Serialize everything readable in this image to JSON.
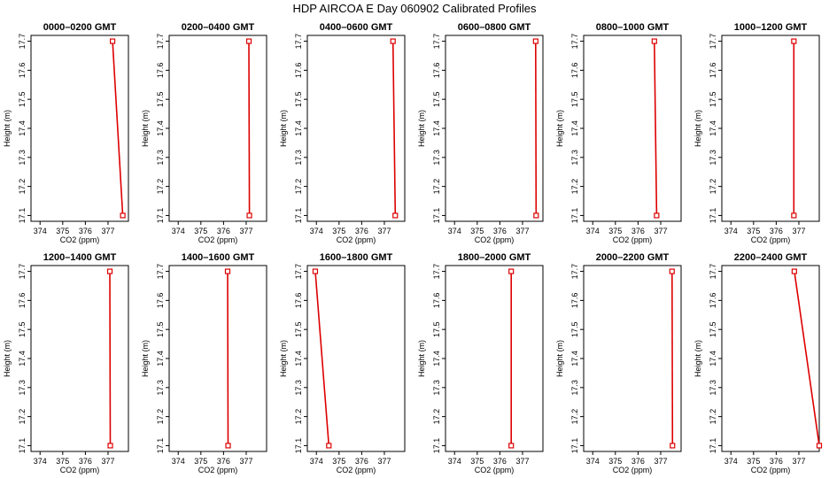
{
  "chart_data": {
    "type": "line",
    "title": "HDP AIRCOA E  Day 060902  Calibrated Profiles",
    "xlabel": "CO2 (ppm)",
    "ylabel": "Height (m)",
    "xlim": [
      373.6,
      377.9
    ],
    "ylim": [
      17.08,
      17.72
    ],
    "x_ticks": [
      "374",
      "375",
      "376",
      "377"
    ],
    "y_ticks": [
      "17.1",
      "17.2",
      "17.3",
      "17.4",
      "17.5",
      "17.6",
      "17.7"
    ],
    "line_color": "#dd0000",
    "marker": "open-square",
    "panels": [
      {
        "title": "0000–0200 GMT",
        "x": [
          377.2,
          377.65
        ],
        "y": [
          17.7,
          17.1
        ]
      },
      {
        "title": "0200–0400 GMT",
        "x": [
          377.12,
          377.14
        ],
        "y": [
          17.7,
          17.1
        ]
      },
      {
        "title": "0400–0600 GMT",
        "x": [
          377.38,
          377.48
        ],
        "y": [
          17.7,
          17.1
        ]
      },
      {
        "title": "0600–0800 GMT",
        "x": [
          377.58,
          377.6
        ],
        "y": [
          17.7,
          17.1
        ]
      },
      {
        "title": "0800–1000 GMT",
        "x": [
          376.72,
          376.82
        ],
        "y": [
          17.7,
          17.1
        ]
      },
      {
        "title": "1000–1200 GMT",
        "x": [
          376.78,
          376.78
        ],
        "y": [
          17.7,
          17.1
        ]
      },
      {
        "title": "1200–1400 GMT",
        "x": [
          377.08,
          377.1
        ],
        "y": [
          17.7,
          17.1
        ]
      },
      {
        "title": "1400–1600 GMT",
        "x": [
          376.18,
          376.2
        ],
        "y": [
          17.7,
          17.1
        ]
      },
      {
        "title": "1600–1800 GMT",
        "x": [
          373.95,
          374.55
        ],
        "y": [
          17.7,
          17.1
        ]
      },
      {
        "title": "1800–2000 GMT",
        "x": [
          376.5,
          376.5
        ],
        "y": [
          17.7,
          17.1
        ]
      },
      {
        "title": "2000–2200 GMT",
        "x": [
          377.5,
          377.52
        ],
        "y": [
          17.7,
          17.1
        ]
      },
      {
        "title": "2200–2400 GMT",
        "x": [
          376.8,
          377.9
        ],
        "y": [
          17.7,
          17.1
        ]
      }
    ]
  }
}
